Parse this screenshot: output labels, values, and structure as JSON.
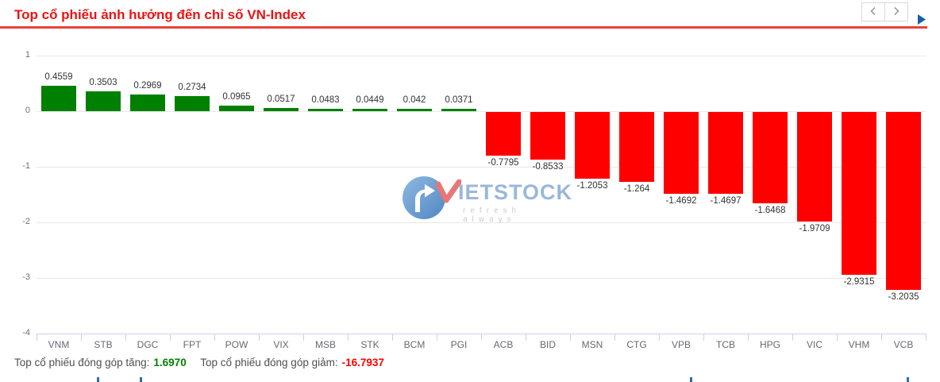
{
  "header": {
    "title": "Top cổ phiếu ảnh hưởng đến chỉ số VN-Index",
    "title_color": "#ed1212",
    "accent_color": "#e8433c",
    "icons": {
      "prev": "chevron-left-icon",
      "next": "chevron-right-icon",
      "corner": "play-triangle-icon"
    },
    "corner_arrow_color": "#1261a8"
  },
  "chart_data": {
    "type": "bar",
    "title": "",
    "xlabel": "",
    "ylabel": "",
    "categories": [
      "VNM",
      "STB",
      "DGC",
      "FPT",
      "POW",
      "VIX",
      "MSB",
      "STK",
      "BCM",
      "PGI",
      "ACB",
      "BID",
      "MSN",
      "CTG",
      "VPB",
      "TCB",
      "HPG",
      "VIC",
      "VHM",
      "VCB"
    ],
    "values": [
      0.4559,
      0.3503,
      0.2969,
      0.2734,
      0.0965,
      0.0517,
      0.0483,
      0.0449,
      0.042,
      0.0371,
      -0.7795,
      -0.8533,
      -1.2053,
      -1.264,
      -1.4692,
      -1.4697,
      -1.6468,
      -1.9709,
      -2.9315,
      -3.2035
    ],
    "value_labels": [
      "0.4559",
      "0.3503",
      "0.2969",
      "0.2734",
      "0.0965",
      "0.0517",
      "0.0483",
      "0.0449",
      "0.042",
      "0.0371",
      "-0.7795",
      "-0.8533",
      "-1.2053",
      "-1.264",
      "-1.4692",
      "-1.4697",
      "-1.6468",
      "-1.9709",
      "-2.9315",
      "-3.2035"
    ],
    "positive_color": "#008000",
    "negative_color": "#ff0000",
    "ylim": [
      -4,
      1
    ],
    "yticks": [
      1,
      0,
      -1,
      -2,
      -3,
      -4
    ],
    "grid": true,
    "legend": "none"
  },
  "watermark": {
    "brand_rest": "IETSTOCK",
    "tagline": "refresh always"
  },
  "footer": {
    "gain_label": "Top cổ phiếu đóng góp tăng:",
    "gain_value": "1.6970",
    "loss_label": "Top cổ phiếu đóng góp giảm:",
    "loss_value": "-16.7937"
  }
}
